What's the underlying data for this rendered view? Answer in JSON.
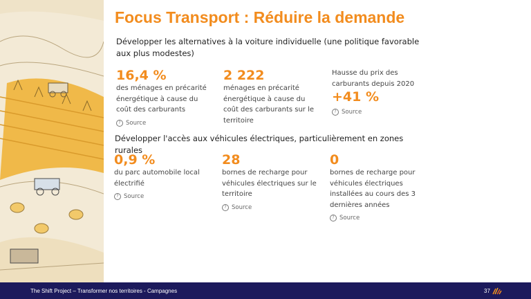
{
  "title": "Focus Transport : Réduire la demande",
  "section1": {
    "heading": "Développer les alternatives à la voiture individuelle (une politique favorable aux plus modestes)",
    "stats": [
      {
        "value": "16,4 %",
        "desc": "des ménages en précarité énergétique à cause du coût des carburants",
        "source": "Source"
      },
      {
        "value": "2 222",
        "desc": "ménages en précarité énergétique à cause du coût des carburants sur le territoire",
        "source": ""
      },
      {
        "pre": "Hausse du prix des carburants depuis 2020",
        "value": "+41 %",
        "source": "Source"
      }
    ]
  },
  "section2": {
    "heading": "Développer l'accès aux véhicules électriques, particulièrement en zones rurales",
    "stats": [
      {
        "value": "0,9 %",
        "desc": "du parc automobile local électrifié",
        "source": "Source"
      },
      {
        "value": "28",
        "desc": "bornes de recharge pour véhicules électriques sur le territoire",
        "source": "Source"
      },
      {
        "value": "0",
        "desc": "bornes de recharge pour véhicules électriques installées au cours des 3 dernières années",
        "source": "Source"
      }
    ]
  },
  "footer": {
    "text": "The Shift Project – Transformer nos territoires - Campagnes",
    "page": "37"
  },
  "colors": {
    "accent": "#f28c1e",
    "footer_bg": "#1c1a5c"
  }
}
